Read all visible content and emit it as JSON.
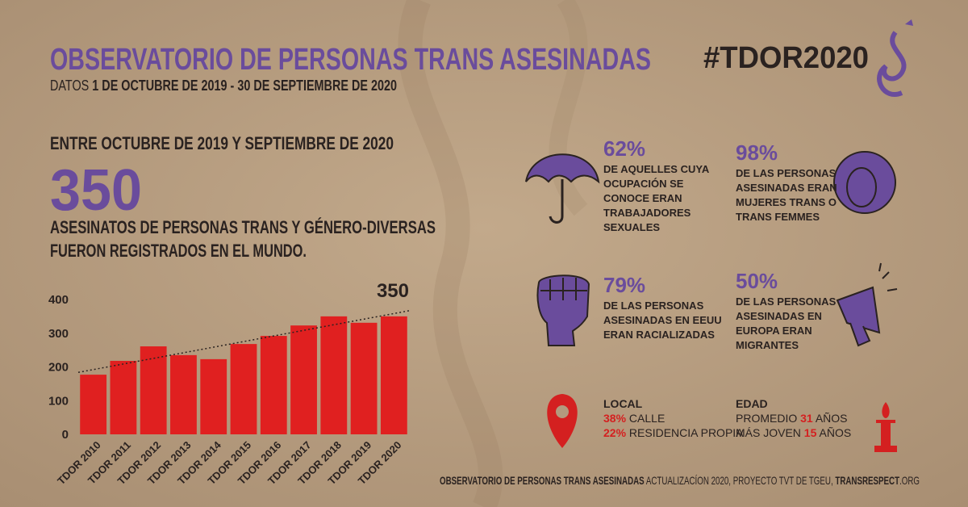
{
  "header": {
    "title": "OBSERVATORIO DE PERSONAS TRANS ASESINADAS",
    "subtitle_prefix": "DATOS ",
    "subtitle_dates": "1 DE OCTUBRE DE 2019 - 30 DE SEPTIEMBRE DE 2020",
    "hashtag": "#TDOR2020"
  },
  "headline": {
    "period": "ENTRE OCTUBRE DE 2019 Y SEPTIEMBRE DE 2020",
    "number": "350",
    "description": [
      "ASESINATOS DE PERSONAS TRANS Y GÉNERO-DIVERSAS",
      "FUERON REGISTRADOS EN EL MUNDO."
    ]
  },
  "chart_data": {
    "type": "bar",
    "categories": [
      "TDOR 2010",
      "TDOR 2011",
      "TDOR 2012",
      "TDOR 2013",
      "TDOR 2014",
      "TDOR 2015",
      "TDOR 2016",
      "TDOR 2017",
      "TDOR 2018",
      "TDOR 2019",
      "TDOR 2020"
    ],
    "values": [
      177,
      218,
      261,
      235,
      223,
      268,
      292,
      323,
      350,
      331,
      350
    ],
    "color": "#e02020",
    "ylim": [
      0,
      400
    ],
    "yticks": [
      0,
      100,
      200,
      300,
      400
    ],
    "grid": false,
    "trendline": true,
    "annotation": "350"
  },
  "stats": [
    {
      "percent": "62%",
      "lines": [
        "DE AQUELLES CUYA",
        "OCUPACIÓN SE",
        "CONOCE ERAN",
        "TRABAJADORES",
        "SEXUALES"
      ]
    },
    {
      "percent": "98%",
      "lines": [
        "DE LAS PERSONAS",
        "ASESINADAS ERAN",
        "MUJERES TRANS O",
        "TRANS FEMMES"
      ]
    },
    {
      "percent": "79%",
      "lines": [
        "DE LAS PERSONAS",
        "ASESINADAS EN EEUU",
        "ERAN RACIALIZADAS"
      ]
    },
    {
      "percent": "50%",
      "lines": [
        "DE LAS PERSONAS",
        "ASESINADAS EN",
        "EUROPA ERAN",
        "MIGRANTES"
      ]
    }
  ],
  "local": {
    "label": "LOCAL",
    "items": [
      {
        "percent": "38%",
        "text": " CALLE"
      },
      {
        "percent": "22%",
        "text": " RESIDENCIA PROPIA"
      }
    ]
  },
  "edad": {
    "label": "EDAD",
    "items": [
      {
        "prefix": "PROMEDIO ",
        "number": "31",
        "suffix": " AÑOS"
      },
      {
        "prefix": "MÁS JOVEN ",
        "number": "15",
        "suffix": " AÑOS"
      }
    ]
  },
  "footer": {
    "source": "OBSERVATORIO DE PERSONAS TRANS ASESINADAS",
    "detail": " ACTUALIZACÍON 2020, PROYECTO TVT DE TGEU, ",
    "site": "TRANSRESPECT",
    "domain": ".ORG"
  }
}
